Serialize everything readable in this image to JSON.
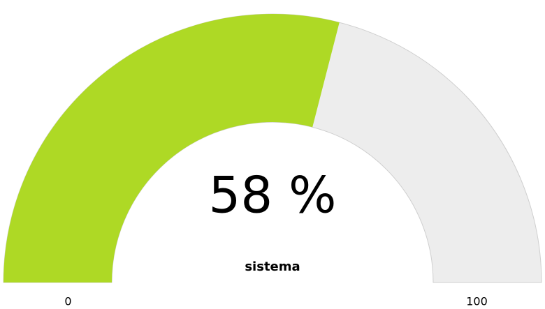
{
  "chart_data": {
    "type": "gauge",
    "title": "sistema",
    "values": [
      58
    ],
    "value_labels": [
      "58 %"
    ],
    "color": "#aed925",
    "track_color": "#ededed",
    "ylim": [
      0,
      100
    ],
    "yticks": [
      0,
      100
    ]
  }
}
